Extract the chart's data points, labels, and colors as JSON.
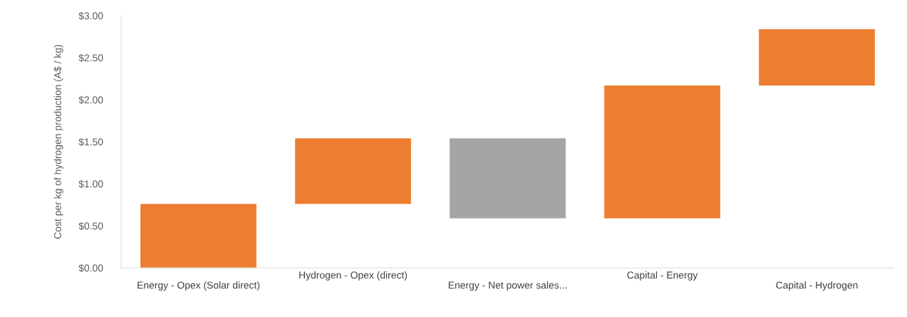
{
  "chart_data": {
    "type": "bar",
    "ylabel": "Cost per kg of hydrogen production (A$ / kg)",
    "categories": [
      "Energy - Opex (Solar direct)",
      "Hydrogen - Opex (direct)",
      "Energy - Net power sales...",
      "Capital - Energy",
      "Capital - Hydrogen"
    ],
    "values": [
      0.76,
      0.78,
      -0.95,
      1.58,
      0.67
    ],
    "base": [
      0,
      0.76,
      1.54,
      0.59,
      2.17
    ],
    "colors": [
      "#ed7d31",
      "#ed7d31",
      "#a5a5a5",
      "#ed7d31",
      "#ed7d31"
    ],
    "ylim": [
      0,
      3
    ],
    "yticks": [
      {
        "value": 0,
        "label": "$0.00"
      },
      {
        "value": 0.5,
        "label": "$0.50"
      },
      {
        "value": 1,
        "label": "$1.00"
      },
      {
        "value": 1.5,
        "label": "$1.50"
      },
      {
        "value": 2,
        "label": "$2.00"
      },
      {
        "value": 2.5,
        "label": "$2.50"
      },
      {
        "value": 3,
        "label": "$3.00"
      }
    ],
    "grid": false,
    "legend": false
  }
}
